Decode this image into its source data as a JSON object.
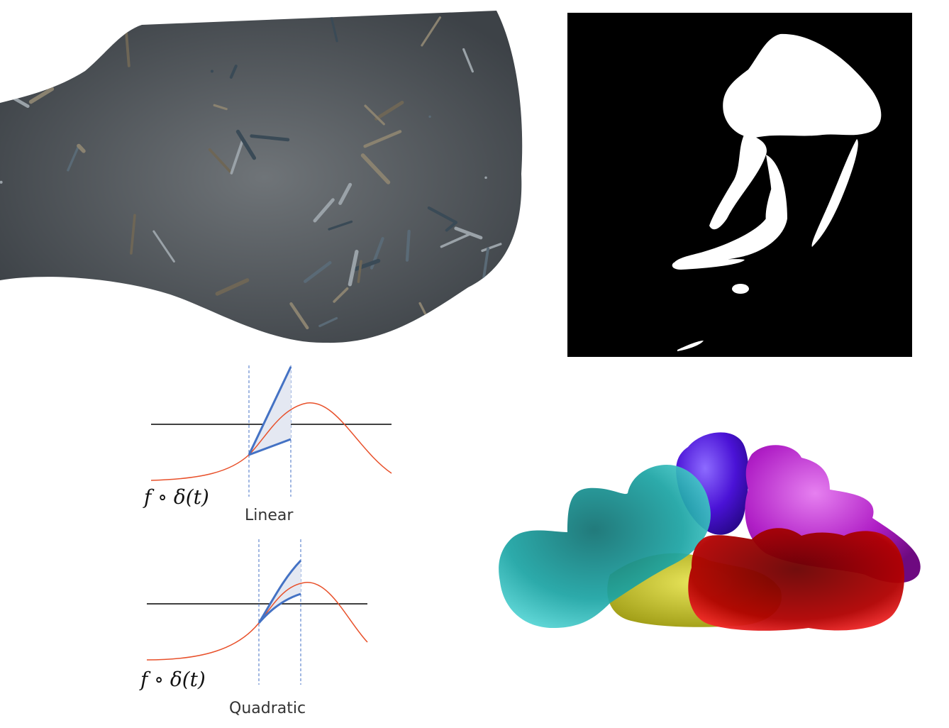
{
  "panels": {
    "lattice": {
      "name": "wireframe-lattice-render"
    },
    "mask": {
      "name": "jellyfish-binary-mask"
    },
    "blobs": {
      "name": "colored-molecular-blobs"
    },
    "linear": {
      "caption": "Linear",
      "function_label": "f ∘ δ(t)"
    },
    "quadratic": {
      "caption": "Quadratic",
      "function_label": "f ∘ δ(t)"
    }
  },
  "colors": {
    "curve": "#e8502a",
    "bound": "#4472c4",
    "shade": "#dde3f0",
    "axis": "#000000",
    "teal": "#1aa3a3",
    "indigo": "#4a12d6",
    "magenta": "#b01fc6",
    "red": "#d61414",
    "yellow": "#c9c61e",
    "tube_dark": "#3a4a56",
    "tube_light": "#8a8270"
  }
}
